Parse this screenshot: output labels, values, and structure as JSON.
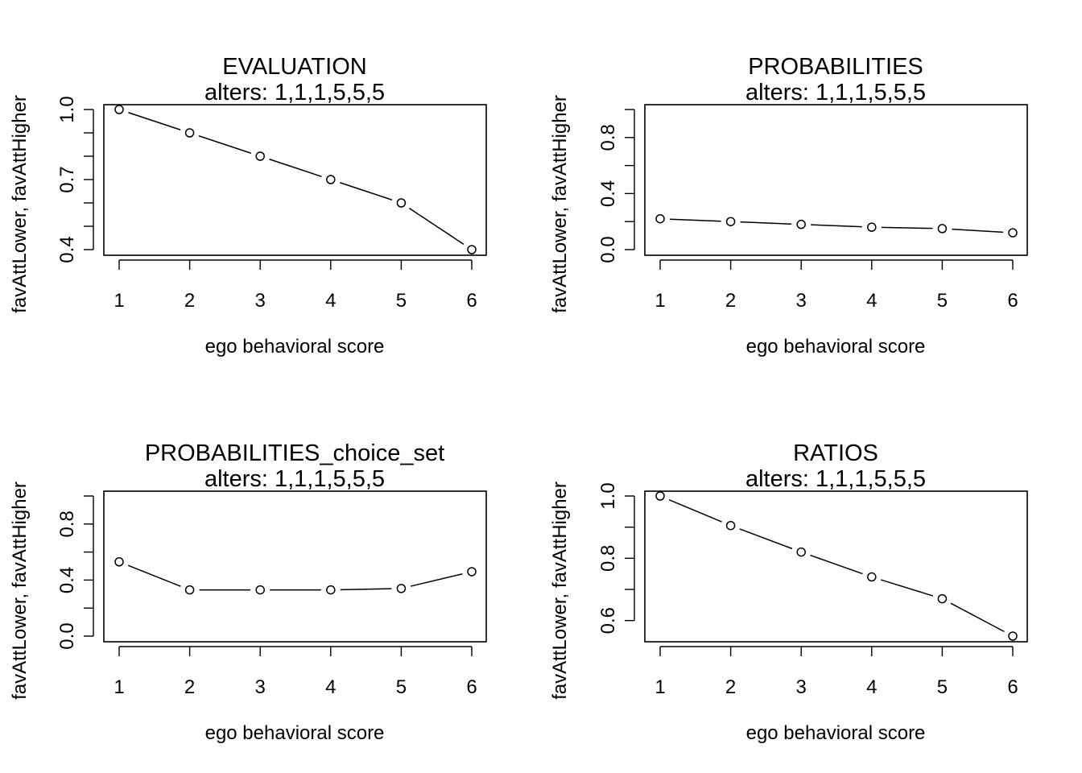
{
  "chart_data": [
    {
      "type": "line",
      "title": "EVALUATION",
      "subtitle": "alters: 1,1,1,5,5,5",
      "xlabel": "ego behavioral score",
      "ylabel": "favAttLower, favAttHigher",
      "x": [
        1,
        2,
        3,
        4,
        5,
        6
      ],
      "values": [
        1.0,
        0.9,
        0.8,
        0.7,
        0.6,
        0.4
      ],
      "xlim": [
        1,
        6
      ],
      "ylim": [
        0.4,
        1.0
      ],
      "y_label_ticks": [
        0.4,
        0.7,
        1.0
      ],
      "y_minor_ticks": [
        0.4,
        0.5,
        0.6,
        0.7,
        0.8,
        0.9,
        1.0
      ],
      "x_ticks": [
        "1",
        "2",
        "3",
        "4",
        "5",
        "6"
      ],
      "grid": false
    },
    {
      "type": "line",
      "title": "PROBABILITIES",
      "subtitle": "alters: 1,1,1,5,5,5",
      "xlabel": "ego behavioral score",
      "ylabel": "favAttLower, favAttHigher",
      "x": [
        1,
        2,
        3,
        4,
        5,
        6
      ],
      "values": [
        0.22,
        0.2,
        0.18,
        0.16,
        0.15,
        0.12
      ],
      "xlim": [
        1,
        6
      ],
      "ylim": [
        0.0,
        1.0
      ],
      "y_label_ticks": [
        0.0,
        0.4,
        0.8
      ],
      "y_minor_ticks": [
        0.0,
        0.2,
        0.4,
        0.6,
        0.8,
        1.0
      ],
      "x_ticks": [
        "1",
        "2",
        "3",
        "4",
        "5",
        "6"
      ],
      "grid": false
    },
    {
      "type": "line",
      "title": "PROBABILITIES_choice_set",
      "subtitle": "alters: 1,1,1,5,5,5",
      "xlabel": "ego behavioral score",
      "ylabel": "favAttLower, favAttHigher",
      "x": [
        1,
        2,
        3,
        4,
        5,
        6
      ],
      "values": [
        0.53,
        0.33,
        0.33,
        0.33,
        0.34,
        0.46
      ],
      "xlim": [
        1,
        6
      ],
      "ylim": [
        0.0,
        1.0
      ],
      "y_label_ticks": [
        0.0,
        0.4,
        0.8
      ],
      "y_minor_ticks": [
        0.0,
        0.2,
        0.4,
        0.6,
        0.8,
        1.0
      ],
      "x_ticks": [
        "1",
        "2",
        "3",
        "4",
        "5",
        "6"
      ],
      "grid": false
    },
    {
      "type": "line",
      "title": "RATIOS",
      "subtitle": "alters: 1,1,1,5,5,5",
      "xlabel": "ego behavioral score",
      "ylabel": "favAttLower, favAttHigher",
      "x": [
        1,
        2,
        3,
        4,
        5,
        6
      ],
      "values": [
        1.0,
        0.905,
        0.82,
        0.74,
        0.67,
        0.55
      ],
      "xlim": [
        1,
        6
      ],
      "ylim": [
        0.55,
        1.0
      ],
      "y_label_ticks": [
        0.6,
        0.8,
        1.0
      ],
      "y_minor_ticks": [
        0.6,
        0.7,
        0.8,
        0.9,
        1.0
      ],
      "x_ticks": [
        "1",
        "2",
        "3",
        "4",
        "5",
        "6"
      ],
      "grid": false
    }
  ]
}
